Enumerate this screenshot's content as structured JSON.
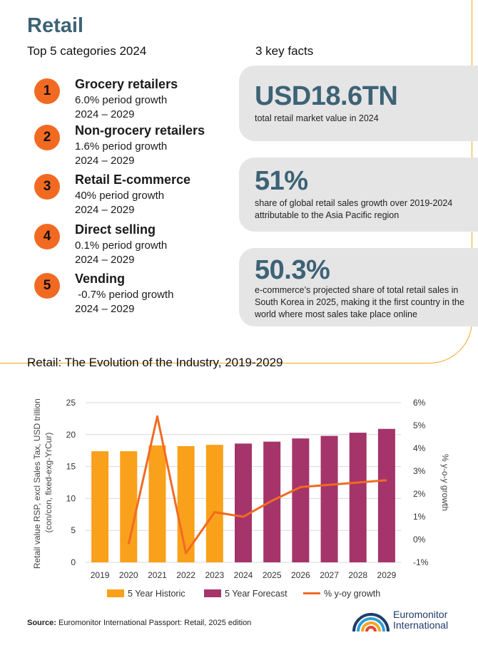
{
  "header": {
    "title": "Retail",
    "categories_heading": "Top 5 categories 2024",
    "facts_heading": "3 key facts"
  },
  "categories": [
    {
      "rank": "1",
      "name": "Grocery retailers",
      "growth": "6.0% period growth",
      "period": "2024 – 2029"
    },
    {
      "rank": "2",
      "name": "Non-grocery retailers",
      "growth": "1.6% period growth",
      "period": "2024 – 2029"
    },
    {
      "rank": "3",
      "name": "Retail E-commerce",
      "growth": "40% period growth",
      "period": "2024 – 2029"
    },
    {
      "rank": "4",
      "name": "Direct selling",
      "growth": "0.1% period growth",
      "period": "2024 – 2029"
    },
    {
      "rank": "5",
      "name": "Vending",
      "growth": " -0.7% period growth",
      "period": "2024 – 2029"
    }
  ],
  "facts": [
    {
      "value": "USD18.6TN",
      "description": "total retail market value in 2024"
    },
    {
      "value": "51%",
      "description": "share of global retail sales growth over 2019-2024 attributable to the Asia Pacific region"
    },
    {
      "value": "50.3%",
      "description": "e-commerce’s projected share of total retail sales in South Korea in 2025, making it the first country in the world where most sales take place online"
    }
  ],
  "colors": {
    "accent_orange": "#f26a21",
    "historic_bar": "#f9a11b",
    "forecast_bar": "#a4346a",
    "growth_line": "#f26a21",
    "title_blue": "#3d6275",
    "fact_bg": "#e5e5e6"
  },
  "chart_data": {
    "type": "bar",
    "title": "Retail: The Evolution of the Industry, 2019-2029",
    "categories": [
      "2019",
      "2020",
      "2021",
      "2022",
      "2023",
      "2024",
      "2025",
      "2026",
      "2027",
      "2028",
      "2029"
    ],
    "series": [
      {
        "name": "5 Year Historic",
        "type": "bar",
        "axis": "left",
        "values": [
          17.4,
          17.4,
          18.3,
          18.2,
          18.4,
          null,
          null,
          null,
          null,
          null,
          null
        ]
      },
      {
        "name": "5 Year Forecast",
        "type": "bar",
        "axis": "left",
        "values": [
          null,
          null,
          null,
          null,
          null,
          18.6,
          18.9,
          19.4,
          19.8,
          20.3,
          20.9
        ]
      },
      {
        "name": "% y-oy growth",
        "type": "line",
        "axis": "right",
        "values": [
          null,
          -0.2,
          5.4,
          -0.6,
          1.2,
          1.0,
          1.7,
          2.3,
          2.4,
          2.5,
          2.6
        ]
      }
    ],
    "ylabel": "Retail value RSP, excl Sales Tax, USD trillion (con/con, fixed-exg-YrCur)",
    "y2label": "% y-o-y growth",
    "ylim": [
      0,
      25
    ],
    "yticks": [
      "0",
      "5",
      "10",
      "15",
      "20",
      "25"
    ],
    "y2lim": [
      -1,
      6
    ],
    "y2ticks": [
      "-1%",
      "0%",
      "1%",
      "2%",
      "3%",
      "4%",
      "5%",
      "6%"
    ],
    "grid": true,
    "legend_position": "bottom"
  },
  "footer": {
    "source_label": "Source:",
    "source_text": "Euromonitor International Passport: Retail, 2025 edition",
    "logo_line1": "Euromonitor",
    "logo_line2": "International"
  }
}
